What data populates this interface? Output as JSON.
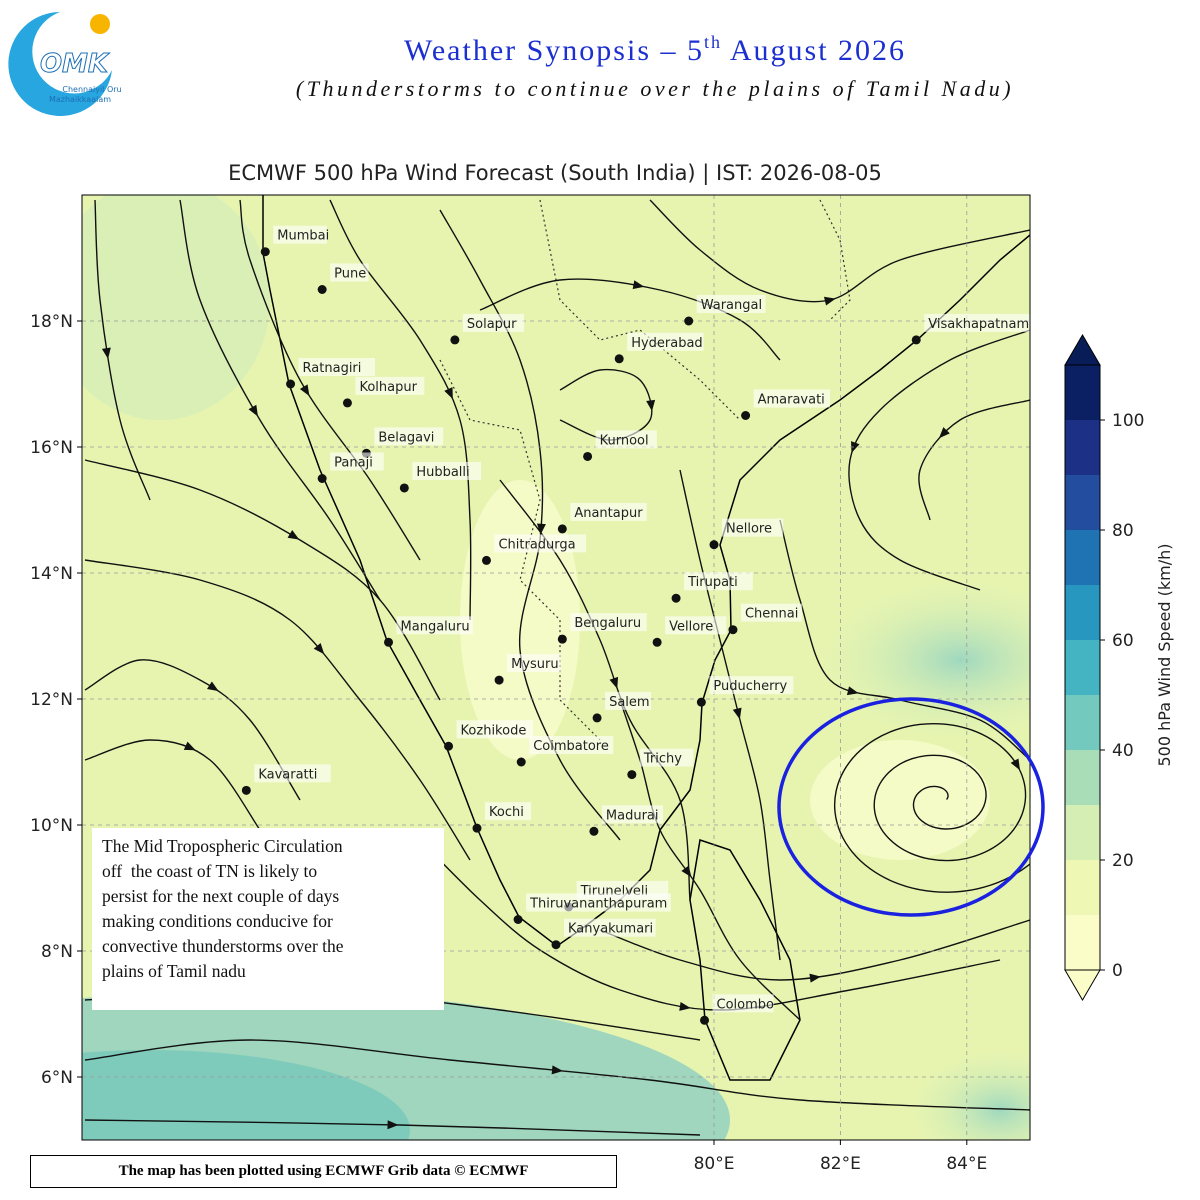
{
  "logo": {
    "mark": "OMK",
    "line1": "Chennaiyil Oru",
    "line2": "Mazhaikkaalam"
  },
  "header": {
    "title_main": "Weather Synopsis – 5",
    "title_sup": "th",
    "title_end": " August 2026",
    "subtitle": "(Thunderstorms to continue over the plains of Tamil Nadu)"
  },
  "map": {
    "title": "ECMWF 500 hPa Wind Forecast (South India) | IST: 2026-08-05",
    "lon_range": [
      70,
      85
    ],
    "lat_range": [
      5,
      20
    ],
    "lat_ticks": [
      {
        "value": 6,
        "label": "6°N"
      },
      {
        "value": 8,
        "label": "8°N"
      },
      {
        "value": 10,
        "label": "10°N"
      },
      {
        "value": 12,
        "label": "12°N"
      },
      {
        "value": 14,
        "label": "14°N"
      },
      {
        "value": 16,
        "label": "16°N"
      },
      {
        "value": 18,
        "label": "18°N"
      }
    ],
    "lon_ticks": [
      {
        "value": 80,
        "label": "80°E"
      },
      {
        "value": 82,
        "label": "82°E"
      },
      {
        "value": 84,
        "label": "84°E"
      }
    ],
    "grid": true,
    "cities": [
      {
        "name": "Mumbai",
        "lon": 72.9,
        "lat": 19.1
      },
      {
        "name": "Pune",
        "lon": 73.8,
        "lat": 18.5
      },
      {
        "name": "Solapur",
        "lon": 75.9,
        "lat": 17.7
      },
      {
        "name": "Warangal",
        "lon": 79.6,
        "lat": 18.0
      },
      {
        "name": "Hyderabad",
        "lon": 78.5,
        "lat": 17.4
      },
      {
        "name": "Visakhapatnam",
        "lon": 83.2,
        "lat": 17.7
      },
      {
        "name": "Ratnagiri",
        "lon": 73.3,
        "lat": 17.0
      },
      {
        "name": "Kolhapur",
        "lon": 74.2,
        "lat": 16.7
      },
      {
        "name": "Amaravati",
        "lon": 80.5,
        "lat": 16.5
      },
      {
        "name": "Belagavi",
        "lon": 74.5,
        "lat": 15.9
      },
      {
        "name": "Panaji",
        "lon": 73.8,
        "lat": 15.5
      },
      {
        "name": "Hubballi",
        "lon": 75.1,
        "lat": 15.35
      },
      {
        "name": "Kurnool",
        "lon": 78.0,
        "lat": 15.85
      },
      {
        "name": "Anantapur",
        "lon": 77.6,
        "lat": 14.7
      },
      {
        "name": "Chitradurga",
        "lon": 76.4,
        "lat": 14.2
      },
      {
        "name": "Nellore",
        "lon": 80.0,
        "lat": 14.45
      },
      {
        "name": "Tirupati",
        "lon": 79.4,
        "lat": 13.6
      },
      {
        "name": "Chennai",
        "lon": 80.3,
        "lat": 13.1
      },
      {
        "name": "Bengaluru",
        "lon": 77.6,
        "lat": 12.95
      },
      {
        "name": "Vellore",
        "lon": 79.1,
        "lat": 12.9
      },
      {
        "name": "Mangaluru",
        "lon": 74.85,
        "lat": 12.9
      },
      {
        "name": "Mysuru",
        "lon": 76.6,
        "lat": 12.3
      },
      {
        "name": "Puducherry",
        "lon": 79.8,
        "lat": 11.95
      },
      {
        "name": "Salem",
        "lon": 78.15,
        "lat": 11.7
      },
      {
        "name": "Kozhikode",
        "lon": 75.8,
        "lat": 11.25
      },
      {
        "name": "Coimbatore",
        "lon": 76.95,
        "lat": 11.0
      },
      {
        "name": "Trichy",
        "lon": 78.7,
        "lat": 10.8
      },
      {
        "name": "Kavaratti",
        "lon": 72.6,
        "lat": 10.55
      },
      {
        "name": "Kochi",
        "lon": 76.25,
        "lat": 9.95
      },
      {
        "name": "Madurai",
        "lon": 78.1,
        "lat": 9.9
      },
      {
        "name": "Tirunelveli",
        "lon": 77.7,
        "lat": 8.7
      },
      {
        "name": "Thiruvananthapuram",
        "lon": 76.9,
        "lat": 8.5
      },
      {
        "name": "Kanyakumari",
        "lon": 77.5,
        "lat": 8.1
      },
      {
        "name": "Colombo",
        "lon": 79.85,
        "lat": 6.9
      }
    ],
    "colorbar": {
      "label": "500 hPa Wind Speed (km/h)",
      "levels": [
        0,
        10,
        20,
        30,
        40,
        50,
        60,
        70,
        80,
        90,
        100,
        110
      ],
      "colors": [
        "#fbfdc8",
        "#eef8b4",
        "#d5eeb3",
        "#a9ddb7",
        "#73c9bd",
        "#45b4c2",
        "#2897bf",
        "#2073b2",
        "#234ea0",
        "#1c3185",
        "#0b1f63"
      ],
      "extend_color": "#081d58",
      "ticks": [
        0,
        20,
        40,
        60,
        80,
        100
      ]
    }
  },
  "annotation": {
    "lines": [
      "The Mid Tropospheric Circulation",
      "off  the coast of TN is likely to",
      "persist for the next couple of days",
      "making conditions conducive for",
      "convective thunderstorms over the",
      "plains of Tamil nadu"
    ]
  },
  "footer": "The map has been plotted using ECMWF Grib data © ECMWF"
}
